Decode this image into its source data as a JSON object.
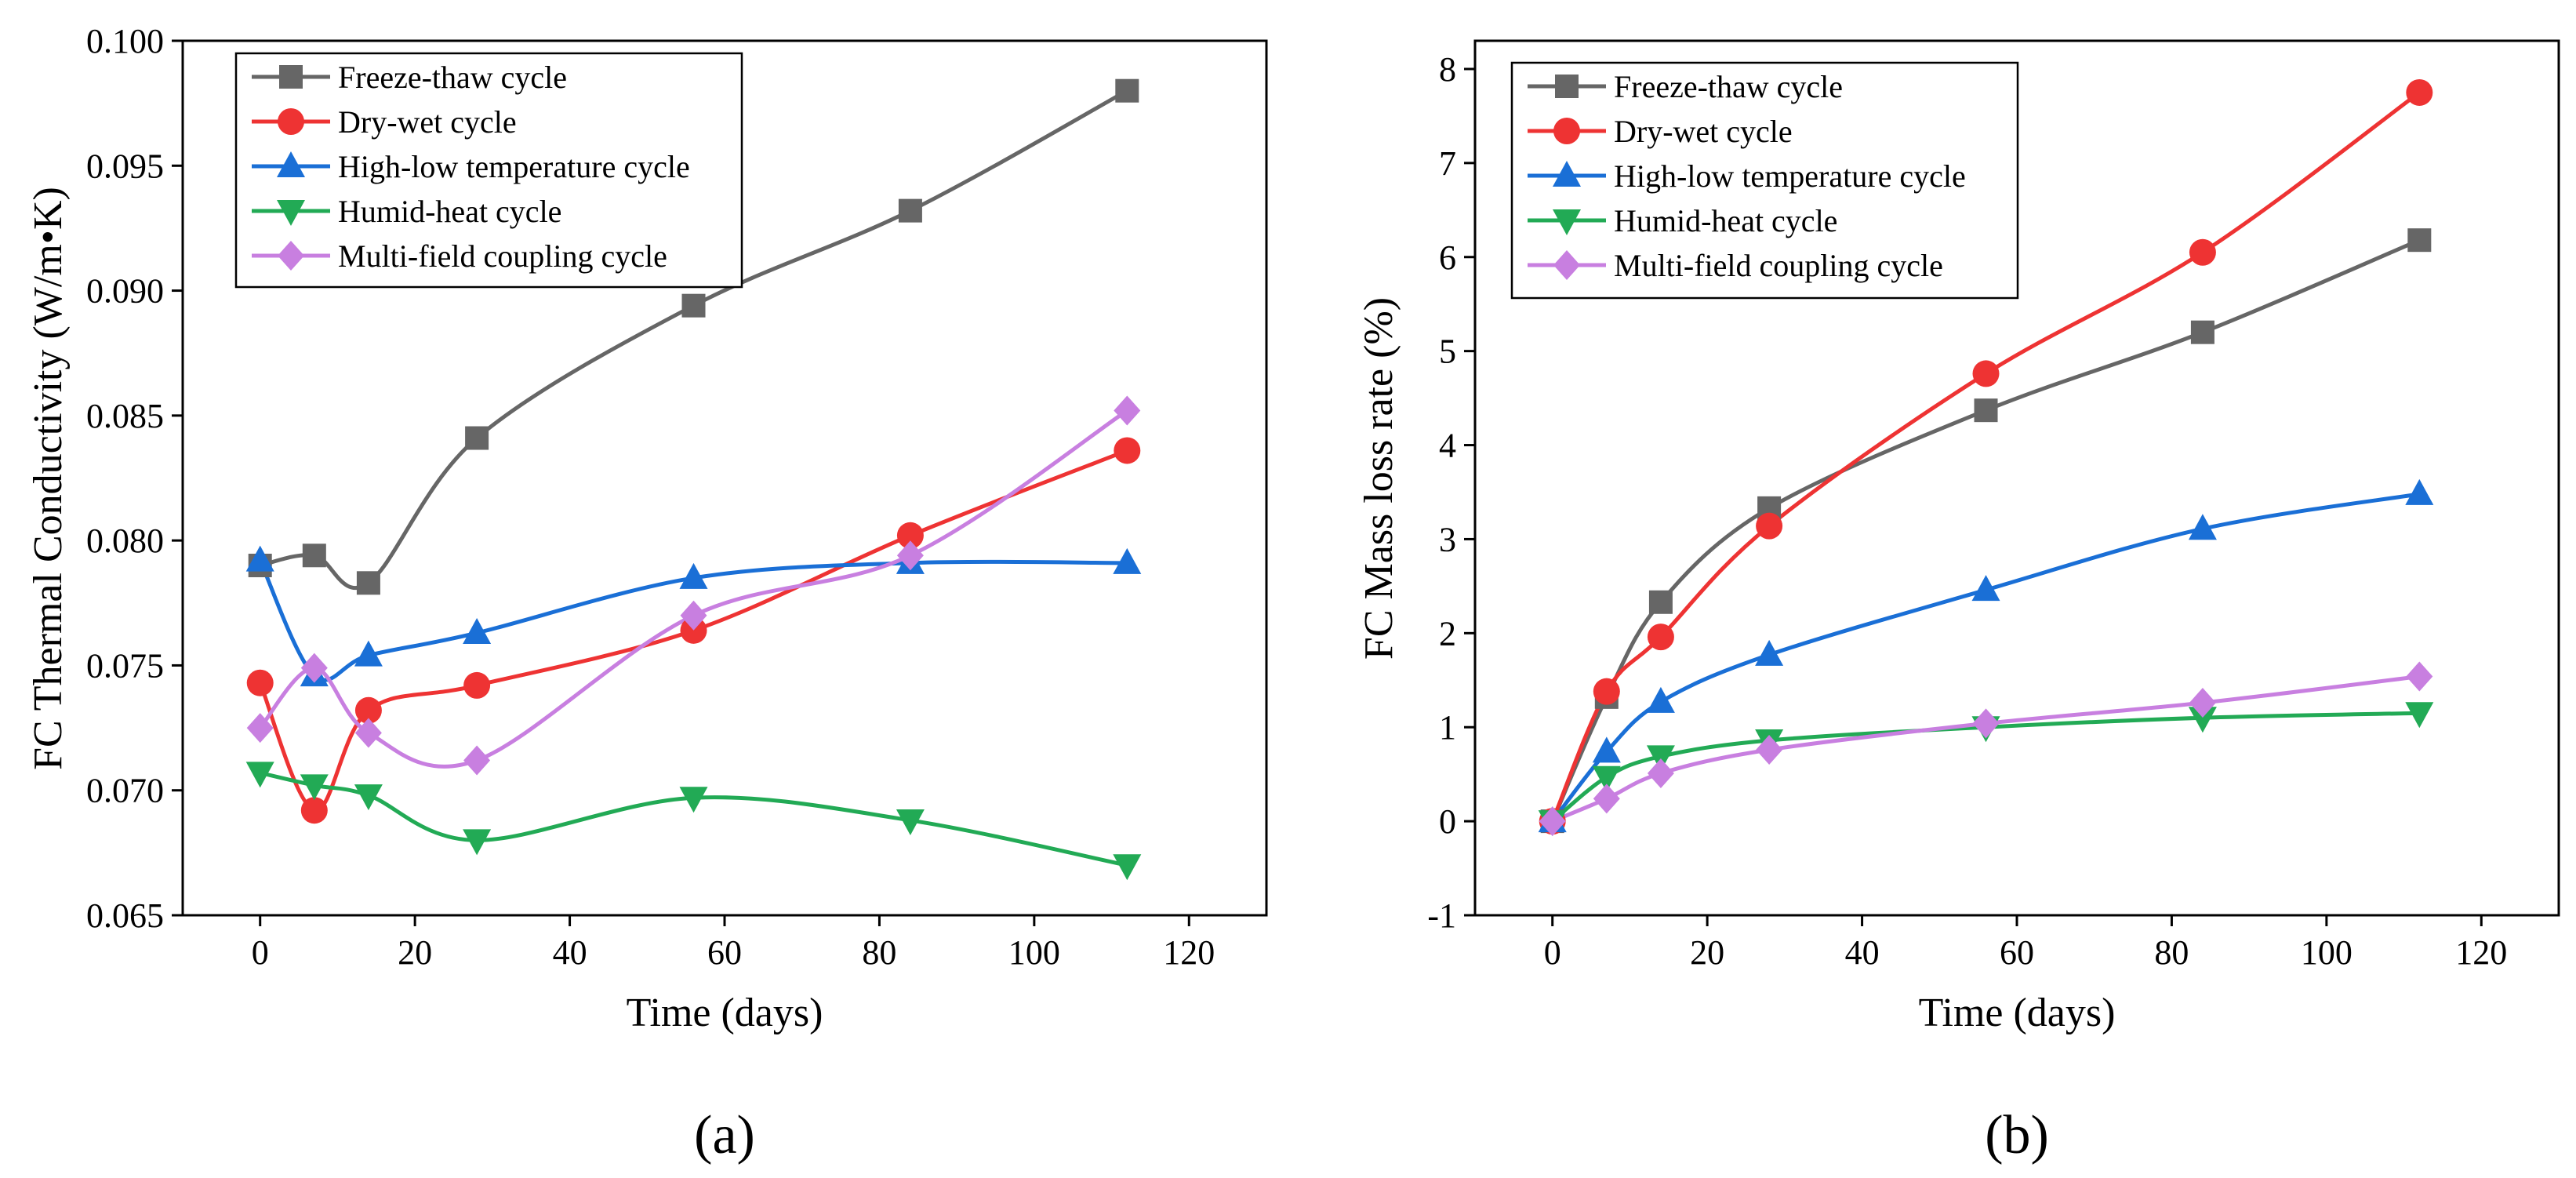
{
  "chart_data": [
    {
      "type": "line",
      "panel_label": "(a)",
      "xlabel": "Time (days)",
      "ylabel": "FC Thermal Conductivity (W/m•K)",
      "xlim": [
        -10,
        130
      ],
      "ylim": [
        0.065,
        0.1
      ],
      "xticks": [
        "0",
        "20",
        "40",
        "60",
        "80",
        "100",
        "120"
      ],
      "yticks": [
        "0.065",
        "0.070",
        "0.075",
        "0.080",
        "0.085",
        "0.090",
        "0.095",
        "0.100"
      ],
      "grid": false,
      "legend_position": "top-left",
      "x": [
        0,
        7,
        14,
        28,
        56,
        84,
        112
      ],
      "series": [
        {
          "name": "Freeze-thaw cycle",
          "color": "#666666",
          "marker": "square",
          "values": [
            0.079,
            0.0794,
            0.0783,
            0.0841,
            0.0894,
            0.0932,
            0.098
          ]
        },
        {
          "name": "Dry-wet cycle",
          "color": "#ee3333",
          "marker": "circle",
          "values": [
            0.0743,
            0.0692,
            0.0732,
            0.0742,
            0.0764,
            0.0802,
            0.0836
          ]
        },
        {
          "name": "High-low temperature cycle",
          "color": "#1a6fd6",
          "marker": "triangle-up",
          "values": [
            0.0792,
            0.0746,
            0.0754,
            0.0763,
            0.0785,
            0.0791,
            0.0791
          ]
        },
        {
          "name": "Humid-heat cycle",
          "color": "#22aa55",
          "marker": "triangle-down",
          "values": [
            0.0707,
            0.0702,
            0.0698,
            0.068,
            0.0697,
            0.0688,
            0.067
          ]
        },
        {
          "name": "Multi-field coupling cycle",
          "color": "#c87fe0",
          "marker": "diamond",
          "values": [
            0.0725,
            0.0749,
            0.0723,
            0.0712,
            0.077,
            0.0794,
            0.0852
          ]
        }
      ]
    },
    {
      "type": "line",
      "panel_label": "(b)",
      "xlabel": "Time (days)",
      "ylabel": "FC Mass loss rate (%)",
      "xlim": [
        -10,
        130
      ],
      "ylim": [
        -1,
        8.3
      ],
      "xticks": [
        "0",
        "20",
        "40",
        "60",
        "80",
        "100",
        "120"
      ],
      "yticks": [
        "-1",
        "0",
        "1",
        "2",
        "3",
        "4",
        "5",
        "6",
        "7",
        "8"
      ],
      "grid": false,
      "legend_position": "top-left",
      "x": [
        0,
        7,
        14,
        28,
        56,
        84,
        112
      ],
      "series": [
        {
          "name": "Freeze-thaw cycle",
          "color": "#666666",
          "marker": "square",
          "values": [
            0,
            1.32,
            2.33,
            3.33,
            4.37,
            5.2,
            6.18
          ]
        },
        {
          "name": "Dry-wet cycle",
          "color": "#ee3333",
          "marker": "circle",
          "values": [
            0,
            1.38,
            1.96,
            3.14,
            4.76,
            6.05,
            7.75
          ]
        },
        {
          "name": "High-low temperature cycle",
          "color": "#1a6fd6",
          "marker": "triangle-up",
          "values": [
            0,
            0.74,
            1.27,
            1.77,
            2.46,
            3.11,
            3.48
          ]
        },
        {
          "name": "Humid-heat cycle",
          "color": "#22aa55",
          "marker": "triangle-down",
          "values": [
            0,
            0.47,
            0.69,
            0.86,
            1.0,
            1.1,
            1.15
          ]
        },
        {
          "name": "Multi-field coupling cycle",
          "color": "#c87fe0",
          "marker": "diamond",
          "values": [
            0,
            0.24,
            0.51,
            0.76,
            1.04,
            1.26,
            1.54
          ]
        }
      ]
    }
  ]
}
